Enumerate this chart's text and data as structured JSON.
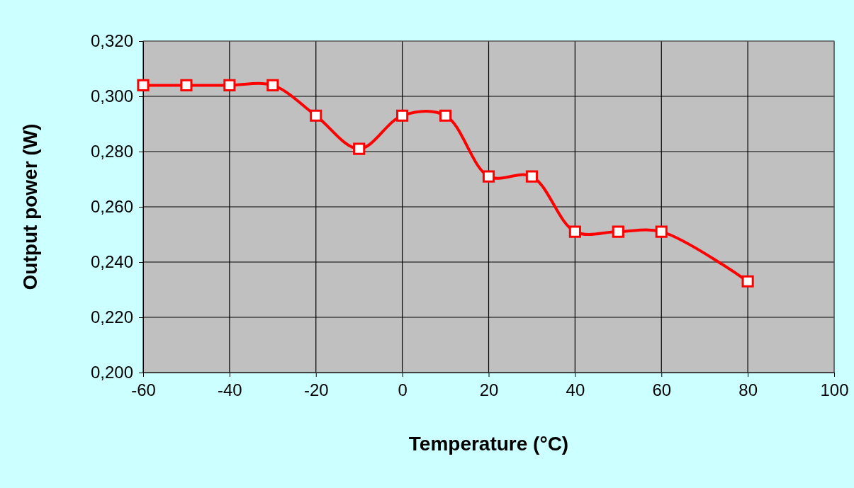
{
  "chart_data": {
    "type": "line",
    "xlabel": "Temperature (°C)",
    "ylabel": "Output power (W)",
    "x": [
      -60,
      -50,
      -40,
      -30,
      -20,
      -10,
      0,
      10,
      20,
      30,
      40,
      50,
      60,
      80
    ],
    "series": [
      {
        "color": "#ff0000",
        "values": [
          0.304,
          0.304,
          0.304,
          0.304,
          0.293,
          0.281,
          0.293,
          0.293,
          0.271,
          0.271,
          0.251,
          0.251,
          0.251,
          0.233
        ]
      }
    ],
    "xlim": [
      -60,
      100
    ],
    "xticks": [
      -60,
      -40,
      -20,
      0,
      20,
      40,
      60,
      80,
      100
    ],
    "ylim": [
      0.2,
      0.32
    ],
    "yticks": [
      {
        "value": 0.2,
        "label": "0,200"
      },
      {
        "value": 0.22,
        "label": "0,220"
      },
      {
        "value": 0.24,
        "label": "0,240"
      },
      {
        "value": 0.26,
        "label": "0,260"
      },
      {
        "value": 0.28,
        "label": "0,280"
      },
      {
        "value": 0.3,
        "label": "0,300"
      },
      {
        "value": 0.32,
        "label": "0,320"
      }
    ],
    "grid": true,
    "marker": "square",
    "line_style": "solid"
  }
}
